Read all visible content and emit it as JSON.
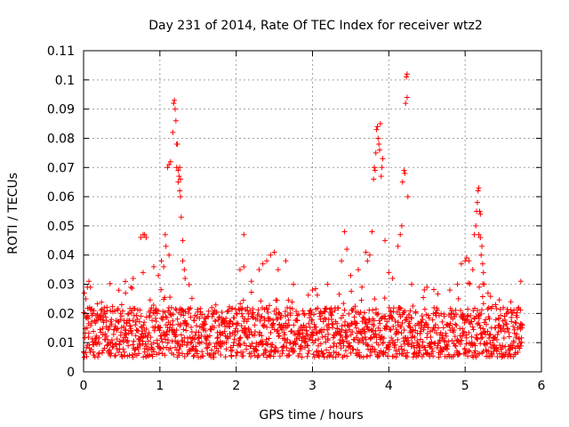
{
  "chart_data": {
    "type": "scatter",
    "title": "Day 231 of 2014, Rate Of TEC Index for receiver wtz2",
    "xlabel": "GPS time / hours",
    "ylabel": "ROTI / TECUs",
    "xlim": [
      0,
      6
    ],
    "ylim": [
      0,
      0.11
    ],
    "grid": true,
    "marker": "+",
    "x_ticks": [
      0,
      1,
      2,
      3,
      4,
      5,
      6
    ],
    "x_tick_labels": [
      "0",
      "1",
      "2",
      "3",
      "4",
      "5",
      "6"
    ],
    "y_ticks": [
      0,
      0.01,
      0.02,
      0.03,
      0.04,
      0.05,
      0.06,
      0.07,
      0.08,
      0.09,
      0.1,
      0.11
    ],
    "y_tick_labels": [
      "0",
      "0.01",
      "0.02",
      "0.03",
      "0.04",
      "0.05",
      "0.06",
      "0.07",
      "0.08",
      "0.09",
      "0.1",
      "0.11"
    ],
    "series": [
      {
        "name": "ROTI",
        "color": "#ff0000",
        "baseline": {
          "x_range": [
            0,
            5.75
          ],
          "typical_range": [
            0.005,
            0.022
          ],
          "upper_envelope": 0.032
        },
        "points": [
          [
            0.01,
            0.027
          ],
          [
            0.03,
            0.025
          ],
          [
            0.05,
            0.029
          ],
          [
            0.07,
            0.031
          ],
          [
            0.12,
            0.02
          ],
          [
            0.35,
            0.021
          ],
          [
            0.5,
            0.023
          ],
          [
            0.55,
            0.027
          ],
          [
            0.62,
            0.029
          ],
          [
            0.65,
            0.032
          ],
          [
            0.75,
            0.046
          ],
          [
            0.78,
            0.047
          ],
          [
            0.8,
            0.047
          ],
          [
            0.82,
            0.046
          ],
          [
            0.78,
            0.034
          ],
          [
            0.92,
            0.036
          ],
          [
            0.98,
            0.033
          ],
          [
            1.02,
            0.038
          ],
          [
            1.05,
            0.036
          ],
          [
            1.07,
            0.047
          ],
          [
            1.08,
            0.043
          ],
          [
            1.12,
            0.04
          ],
          [
            1.1,
            0.07
          ],
          [
            1.12,
            0.071
          ],
          [
            1.14,
            0.072
          ],
          [
            1.18,
            0.092
          ],
          [
            1.19,
            0.093
          ],
          [
            1.2,
            0.09
          ],
          [
            1.17,
            0.082
          ],
          [
            1.21,
            0.086
          ],
          [
            1.22,
            0.078
          ],
          [
            1.23,
            0.078
          ],
          [
            1.22,
            0.07
          ],
          [
            1.24,
            0.069
          ],
          [
            1.25,
            0.067
          ],
          [
            1.26,
            0.07
          ],
          [
            1.24,
            0.065
          ],
          [
            1.26,
            0.062
          ],
          [
            1.27,
            0.06
          ],
          [
            1.27,
            0.066
          ],
          [
            1.28,
            0.053
          ],
          [
            1.3,
            0.045
          ],
          [
            1.32,
            0.035
          ],
          [
            1.33,
            0.032
          ],
          [
            1.3,
            0.038
          ],
          [
            2.1,
            0.047
          ],
          [
            2.05,
            0.035
          ],
          [
            2.1,
            0.036
          ],
          [
            2.2,
            0.031
          ],
          [
            2.3,
            0.035
          ],
          [
            2.35,
            0.037
          ],
          [
            2.4,
            0.038
          ],
          [
            2.45,
            0.04
          ],
          [
            2.5,
            0.041
          ],
          [
            2.55,
            0.035
          ],
          [
            2.65,
            0.038
          ],
          [
            2.75,
            0.03
          ],
          [
            3.0,
            0.028
          ],
          [
            3.2,
            0.03
          ],
          [
            3.38,
            0.038
          ],
          [
            3.42,
            0.048
          ],
          [
            3.45,
            0.042
          ],
          [
            3.5,
            0.033
          ],
          [
            3.6,
            0.035
          ],
          [
            3.7,
            0.041
          ],
          [
            3.72,
            0.038
          ],
          [
            3.75,
            0.04
          ],
          [
            3.78,
            0.048
          ],
          [
            3.8,
            0.066
          ],
          [
            3.81,
            0.07
          ],
          [
            3.82,
            0.069
          ],
          [
            3.83,
            0.075
          ],
          [
            3.84,
            0.083
          ],
          [
            3.85,
            0.084
          ],
          [
            3.86,
            0.08
          ],
          [
            3.87,
            0.078
          ],
          [
            3.88,
            0.076
          ],
          [
            3.89,
            0.085
          ],
          [
            3.9,
            0.067
          ],
          [
            3.91,
            0.07
          ],
          [
            3.92,
            0.073
          ],
          [
            3.95,
            0.045
          ],
          [
            4.0,
            0.034
          ],
          [
            4.05,
            0.032
          ],
          [
            4.12,
            0.043
          ],
          [
            4.15,
            0.047
          ],
          [
            4.17,
            0.05
          ],
          [
            4.18,
            0.065
          ],
          [
            4.2,
            0.069
          ],
          [
            4.21,
            0.068
          ],
          [
            4.22,
            0.092
          ],
          [
            4.24,
            0.094
          ],
          [
            4.23,
            0.101
          ],
          [
            4.24,
            0.102
          ],
          [
            4.25,
            0.06
          ],
          [
            4.3,
            0.03
          ],
          [
            4.5,
            0.029
          ],
          [
            4.8,
            0.028
          ],
          [
            4.9,
            0.03
          ],
          [
            4.95,
            0.037
          ],
          [
            5.0,
            0.038
          ],
          [
            5.02,
            0.039
          ],
          [
            5.05,
            0.038
          ],
          [
            5.1,
            0.035
          ],
          [
            5.12,
            0.047
          ],
          [
            5.14,
            0.05
          ],
          [
            5.15,
            0.055
          ],
          [
            5.16,
            0.058
          ],
          [
            5.17,
            0.062
          ],
          [
            5.18,
            0.063
          ],
          [
            5.19,
            0.055
          ],
          [
            5.2,
            0.054
          ],
          [
            5.18,
            0.047
          ],
          [
            5.2,
            0.046
          ],
          [
            5.22,
            0.043
          ],
          [
            5.21,
            0.04
          ],
          [
            5.23,
            0.037
          ],
          [
            5.24,
            0.034
          ],
          [
            5.25,
            0.03
          ],
          [
            5.3,
            0.027
          ],
          [
            5.73,
            0.031
          ],
          [
            5.7,
            0.022
          ],
          [
            5.6,
            0.024
          ],
          [
            5.5,
            0.022
          ],
          [
            5.4,
            0.023
          ]
        ]
      }
    ]
  }
}
